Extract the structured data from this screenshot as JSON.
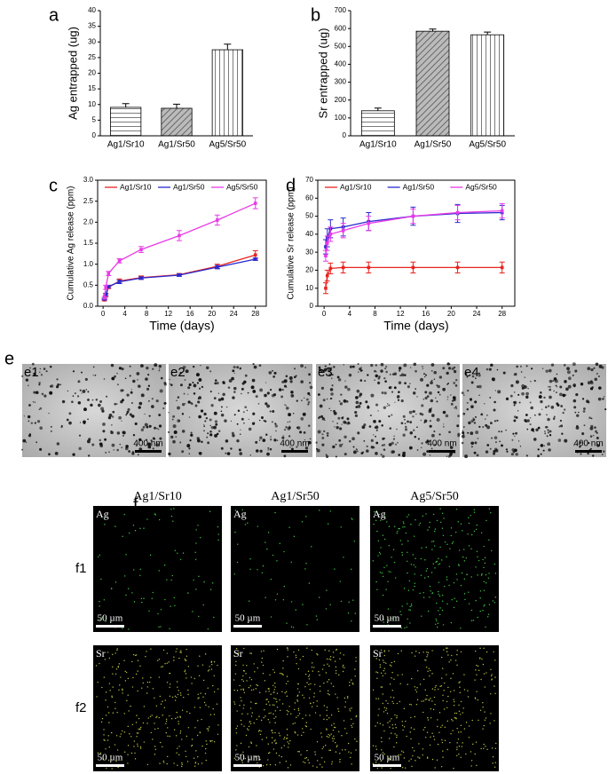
{
  "chart_data": [
    {
      "type": "bar",
      "label": "a",
      "ylabel": "Ag entrapped (ug)",
      "categories": [
        "Ag1/Sr10",
        "Ag1/Sr50",
        "Ag5/Sr50"
      ],
      "values": [
        9.1,
        8.8,
        27.5
      ],
      "errors": [
        1.2,
        1.3,
        1.8
      ],
      "color": "#ffffff",
      "ylim": [
        0,
        40
      ],
      "yticks": [
        0,
        5,
        10,
        15,
        20,
        25,
        30,
        35,
        40
      ]
    },
    {
      "type": "bar",
      "label": "b",
      "ylabel": "Sr entrapped (ug)",
      "categories": [
        "Ag1/Sr10",
        "Ag1/Sr50",
        "Ag5/Sr50"
      ],
      "values": [
        140,
        585,
        565
      ],
      "errors": [
        15,
        12,
        15
      ],
      "color": "#ffffff",
      "ylim": [
        0,
        700
      ],
      "yticks": [
        0,
        100,
        200,
        300,
        400,
        500,
        600,
        700
      ]
    },
    {
      "type": "line",
      "label": "c",
      "ylabel": "Cumulative Ag release (ppm)",
      "xlabel": "Time (days)",
      "x": [
        0.25,
        0.5,
        1,
        3,
        7,
        14,
        21,
        28
      ],
      "series": [
        {
          "name": "Ag1/Sr10",
          "color": "#e8231f",
          "values": [
            0.15,
            0.25,
            0.45,
            0.6,
            0.68,
            0.75,
            0.95,
            1.22
          ],
          "errors": [
            0.02,
            0.03,
            0.03,
            0.05,
            0.04,
            0.03,
            0.05,
            0.1
          ]
        },
        {
          "name": "Ag1/Sr50",
          "color": "#2a2ad0",
          "values": [
            0.17,
            0.28,
            0.47,
            0.58,
            0.67,
            0.74,
            0.93,
            1.12
          ],
          "errors": [
            0.02,
            0.03,
            0.03,
            0.04,
            0.03,
            0.03,
            0.04,
            0.03
          ]
        },
        {
          "name": "Ag5/Sr50",
          "color": "#e83ae8",
          "values": [
            0.2,
            0.45,
            0.78,
            1.08,
            1.35,
            1.68,
            2.05,
            2.45
          ],
          "errors": [
            0.03,
            0.05,
            0.05,
            0.05,
            0.07,
            0.12,
            0.12,
            0.13
          ]
        }
      ],
      "xlim": [
        -1,
        30
      ],
      "xticks": [
        0,
        4,
        8,
        12,
        16,
        20,
        24,
        28
      ],
      "ylim": [
        0,
        3
      ],
      "yticks": [
        {
          "value": 0,
          "label": "0.0"
        },
        0.5,
        {
          "value": 1,
          "label": "1.0"
        },
        1.5,
        {
          "value": 2,
          "label": "2.0"
        },
        2.5,
        {
          "value": 3,
          "label": "3.0"
        }
      ]
    },
    {
      "type": "line",
      "label": "d",
      "ylabel": "Cumulative Sr release (ppm)",
      "xlabel": "Time (days)",
      "x": [
        0.25,
        0.5,
        1,
        3,
        7,
        14,
        21,
        28
      ],
      "series": [
        {
          "name": "Ag1/Sr10",
          "color": "#e8231f",
          "values": [
            10,
            17,
            21,
            21.5,
            21.5,
            21.5,
            21.5,
            21.5
          ],
          "errors": [
            3,
            3,
            3,
            3,
            3,
            3,
            3,
            3
          ]
        },
        {
          "name": "Ag1/Sr50",
          "color": "#2a2ad0",
          "values": [
            33,
            38,
            43,
            44,
            47,
            50,
            51.5,
            52
          ],
          "errors": [
            4,
            5,
            5,
            5,
            5,
            5,
            5,
            4
          ]
        },
        {
          "name": "Ag5/Sr50",
          "color": "#e83ae8",
          "values": [
            28,
            35,
            40,
            42,
            46,
            50,
            52,
            53
          ],
          "errors": [
            3,
            4,
            4,
            4,
            4,
            4,
            4,
            4
          ]
        }
      ],
      "xlim": [
        -1,
        30
      ],
      "xticks": [
        0,
        4,
        8,
        12,
        16,
        20,
        24,
        28
      ],
      "ylim": [
        0,
        70
      ],
      "yticks": [
        0,
        10,
        20,
        30,
        40,
        50,
        60,
        70
      ]
    }
  ],
  "tem": {
    "label": "e",
    "panels": [
      "e1",
      "e2",
      "e3",
      "e4"
    ],
    "scale": "400 nm"
  },
  "maps": {
    "label": "f",
    "columns": [
      "Ag1/Sr10",
      "Ag1/Sr50",
      "Ag5/Sr50"
    ],
    "rows": [
      {
        "label": "f1",
        "element": "Ag"
      },
      {
        "label": "f2",
        "element": "Sr"
      }
    ],
    "scale": "50 µm"
  }
}
